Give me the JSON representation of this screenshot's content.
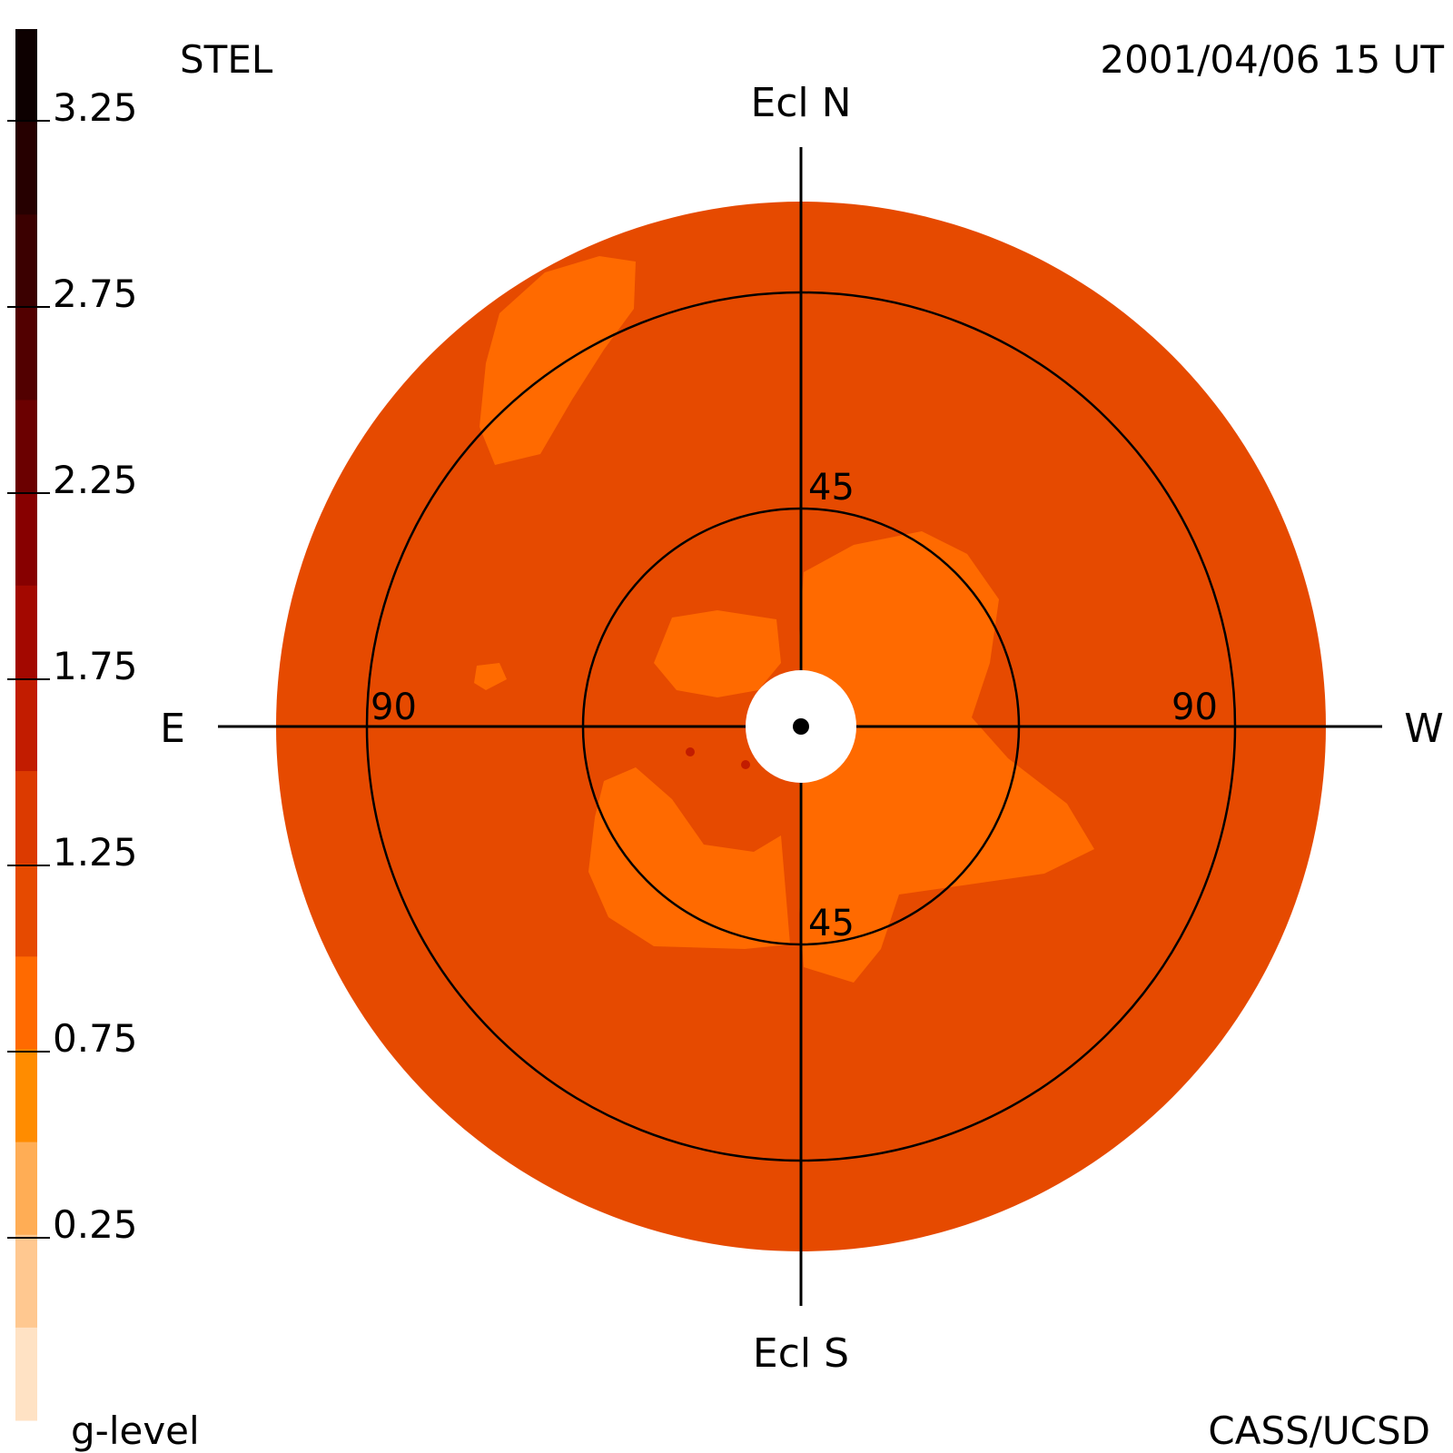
{
  "header": {
    "instrument": "STEL",
    "timestamp": "2001/04/06 15 UT"
  },
  "footer": {
    "scale_label": "g-level",
    "credit": "CASS/UCSD"
  },
  "directions": {
    "north": "Ecl N",
    "south": "Ecl S",
    "east": "E",
    "west": "W"
  },
  "ring_labels": {
    "inner_top": "45",
    "inner_bottom": "45",
    "outer_left": "90",
    "outer_right": "90"
  },
  "colorbar": {
    "tick_labels": [
      "3.25",
      "2.75",
      "2.25",
      "1.75",
      "1.25",
      "0.75",
      "0.25"
    ],
    "bands_top_to_bottom": [
      "#0d0000",
      "#260000",
      "#3b0000",
      "#520000",
      "#6b0000",
      "#870000",
      "#a30800",
      "#c21c00",
      "#dc3a00",
      "#e64a00",
      "#ff6a00",
      "#ff8c00",
      "#ffad55",
      "#ffc890",
      "#ffe2c4"
    ]
  },
  "map_colors": {
    "background": "#e64a00",
    "enhancement": "#ff6a00",
    "high_spot": "#c21c00",
    "occulter": "#ffffff"
  }
}
